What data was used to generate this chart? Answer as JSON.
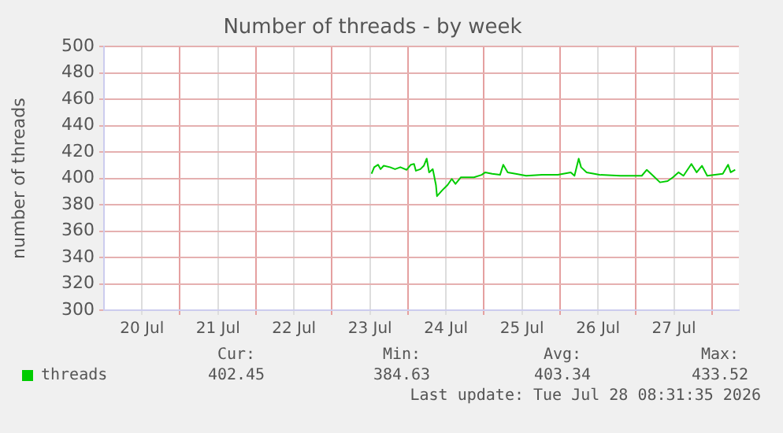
{
  "chart_data": {
    "type": "line",
    "title": "Number of threads - by week",
    "ylabel": "number of threads",
    "x": [
      "2026-07-23T12:30",
      "2026-07-23T13:20",
      "2026-07-23T14:35",
      "2026-07-23T15:20",
      "2026-07-23T16:20",
      "2026-07-23T18:20",
      "2026-07-23T19:55",
      "2026-07-23T21:35",
      "2026-07-23T23:35",
      "2026-07-24T00:55",
      "2026-07-24T01:55",
      "2026-07-24T02:30",
      "2026-07-24T03:55",
      "2026-07-24T05:00",
      "2026-07-24T05:55",
      "2026-07-24T06:40",
      "2026-07-24T07:50",
      "2026-07-24T08:50",
      "2026-07-24T09:10",
      "2026-07-24T10:50",
      "2026-07-24T12:30",
      "2026-07-24T13:50",
      "2026-07-24T15:00",
      "2026-07-24T16:40",
      "2026-07-24T20:50",
      "2026-07-24T23:15",
      "2026-07-25T00:25",
      "2026-07-25T02:35",
      "2026-07-25T05:05",
      "2026-07-25T06:05",
      "2026-07-25T07:30",
      "2026-07-25T10:00",
      "2026-07-25T13:20",
      "2026-07-25T18:20",
      "2026-07-25T23:20",
      "2026-07-26T03:25",
      "2026-07-26T04:35",
      "2026-07-26T05:55",
      "2026-07-26T06:40",
      "2026-07-26T08:25",
      "2026-07-26T12:30",
      "2026-07-26T19:05",
      "2026-07-27T01:50",
      "2026-07-27T03:25",
      "2026-07-27T05:05",
      "2026-07-27T07:35",
      "2026-07-27T10:00",
      "2026-07-27T11:40",
      "2026-07-27T13:25",
      "2026-07-27T15:00",
      "2026-07-27T17:30",
      "2026-07-27T19:10",
      "2026-07-27T20:50",
      "2026-07-27T22:30",
      "2026-07-28T00:55",
      "2026-07-28T03:25",
      "2026-07-28T05:05",
      "2026-07-28T05:55",
      "2026-07-28T07:20"
    ],
    "series": [
      {
        "name": "threads",
        "color": "#00cc00",
        "values": [
          403.5,
          408.5,
          410.4,
          407,
          409.6,
          408.5,
          407,
          408.5,
          406.5,
          410.4,
          411,
          405.8,
          407,
          409.6,
          415,
          404.6,
          407,
          395,
          386.5,
          391,
          395,
          399.6,
          395.8,
          400.8,
          400.8,
          402.7,
          404.6,
          403.5,
          402.7,
          410.4,
          404.6,
          403.5,
          402,
          402.7,
          402.7,
          404.6,
          402,
          415,
          408.5,
          404.6,
          402.7,
          402,
          402,
          406.5,
          402.7,
          397,
          398,
          400.8,
          404.6,
          402,
          411,
          404.6,
          409.6,
          402,
          402.7,
          403.5,
          410.4,
          404.6,
          406.5
        ]
      }
    ],
    "xlim": [
      "2026-07-20T00:00",
      "2026-07-28T08:30"
    ],
    "xticks": [
      {
        "value": "2026-07-20T12:00",
        "label": "20 Jul"
      },
      {
        "value": "2026-07-21T00:00",
        "label": null
      },
      {
        "value": "2026-07-21T12:00",
        "label": "21 Jul"
      },
      {
        "value": "2026-07-22T00:00",
        "label": null
      },
      {
        "value": "2026-07-22T12:00",
        "label": "22 Jul"
      },
      {
        "value": "2026-07-23T00:00",
        "label": null
      },
      {
        "value": "2026-07-23T12:00",
        "label": "23 Jul"
      },
      {
        "value": "2026-07-24T00:00",
        "label": null
      },
      {
        "value": "2026-07-24T12:00",
        "label": "24 Jul"
      },
      {
        "value": "2026-07-25T00:00",
        "label": null
      },
      {
        "value": "2026-07-25T12:00",
        "label": "25 Jul"
      },
      {
        "value": "2026-07-26T00:00",
        "label": null
      },
      {
        "value": "2026-07-26T12:00",
        "label": "26 Jul"
      },
      {
        "value": "2026-07-27T00:00",
        "label": null
      },
      {
        "value": "2026-07-27T12:00",
        "label": "27 Jul"
      },
      {
        "value": "2026-07-28T00:00",
        "label": null
      }
    ],
    "ylim": [
      300,
      500
    ],
    "yticks": [
      300,
      320,
      340,
      360,
      380,
      400,
      420,
      440,
      460,
      480,
      500
    ],
    "grid": true,
    "legend": "bottom left",
    "marker": "none",
    "line_style": "solid",
    "annotations": [
      "Cur:",
      "Min:",
      "Avg:",
      "Max:",
      "402.45",
      "384.63",
      "403.34",
      "433.52",
      "Last update: Tue Jul 28 08:31:35 2026"
    ]
  }
}
